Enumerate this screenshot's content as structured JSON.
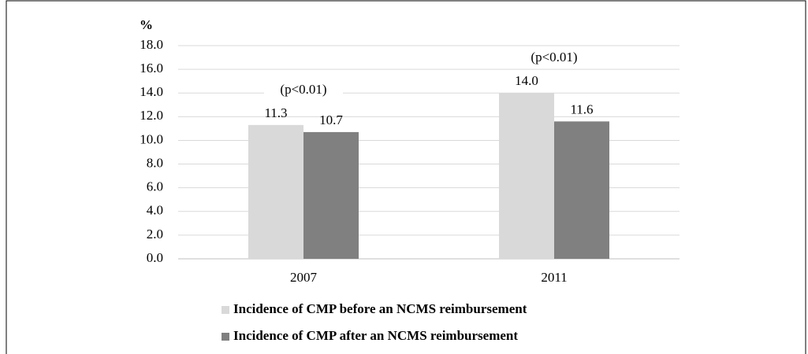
{
  "chart_data": {
    "type": "bar",
    "ylabel": "%",
    "categories": [
      "2007",
      "2011"
    ],
    "series": [
      {
        "name": "Incidence of CMP before an NCMS reimbursement",
        "color": "#d9d9d9",
        "values": [
          11.3,
          14.0
        ],
        "value_labels": [
          "11.3",
          "14.0"
        ]
      },
      {
        "name": "Incidence of CMP after an NCMS reimbursement",
        "color": "#808080",
        "values": [
          10.7,
          11.6
        ],
        "value_labels": [
          "10.7",
          "11.6"
        ]
      }
    ],
    "annotations": [
      "(p<0.01)",
      "(p<0.01)"
    ],
    "ylim": [
      0,
      18
    ],
    "yticks": [
      {
        "value": 0,
        "label": "0.0"
      },
      {
        "value": 2,
        "label": "2.0"
      },
      {
        "value": 4,
        "label": "4.0"
      },
      {
        "value": 6,
        "label": "6.0"
      },
      {
        "value": 8,
        "label": "8.0"
      },
      {
        "value": 10,
        "label": "10.0"
      },
      {
        "value": 12,
        "label": "12.0"
      },
      {
        "value": 14,
        "label": "14.0"
      },
      {
        "value": 16,
        "label": "16.0"
      },
      {
        "value": 18,
        "label": "18.0"
      }
    ],
    "grid": true
  }
}
